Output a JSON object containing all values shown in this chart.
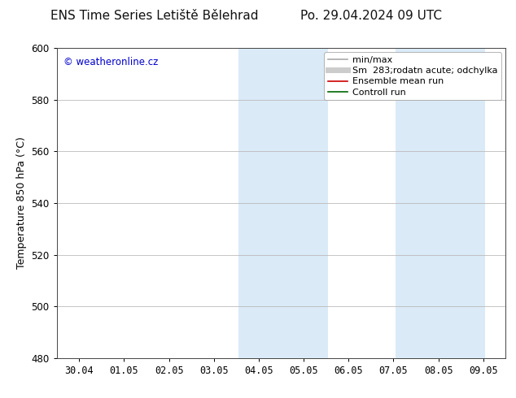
{
  "title_left": "ENS Time Series Letiště Bělehrad",
  "title_right": "Po. 29.04.2024 09 UTC",
  "ylabel": "Temperature 850 hPa (°C)",
  "watermark": "© weatheronline.cz",
  "watermark_color": "#0000cc",
  "ylim": [
    480,
    600
  ],
  "yticks": [
    480,
    500,
    520,
    540,
    560,
    580,
    600
  ],
  "x_labels": [
    "30.04",
    "01.05",
    "02.05",
    "03.05",
    "04.05",
    "05.05",
    "06.05",
    "07.05",
    "08.05",
    "09.05"
  ],
  "x_positions": [
    0,
    1,
    2,
    3,
    4,
    5,
    6,
    7,
    8,
    9
  ],
  "shaded_regions": [
    {
      "x_start": 3.55,
      "x_end": 5.55
    },
    {
      "x_start": 7.05,
      "x_end": 9.05
    }
  ],
  "shaded_color": "#daeaf7",
  "xlim": [
    -0.5,
    9.5
  ],
  "background_color": "#ffffff",
  "plot_bg_color": "#ffffff",
  "legend_items": [
    {
      "label": "min/max",
      "color": "#aaaaaa",
      "lw": 1.2,
      "style": "solid"
    },
    {
      "label": "Sm  283;rodatn acute; odchylka",
      "color": "#cccccc",
      "lw": 5,
      "style": "solid"
    },
    {
      "label": "Ensemble mean run",
      "color": "#cc0000",
      "lw": 1.2,
      "style": "solid"
    },
    {
      "label": "Controll run",
      "color": "#006600",
      "lw": 1.2,
      "style": "solid"
    }
  ],
  "grid_color": "#bbbbbb",
  "spine_color": "#444444",
  "tick_fontsize": 8.5,
  "label_fontsize": 9,
  "title_fontsize": 11,
  "legend_fontsize": 8
}
